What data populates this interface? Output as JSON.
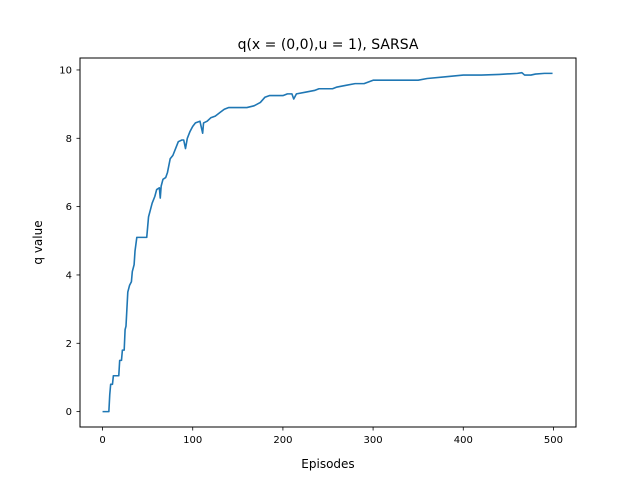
{
  "chart_data": {
    "type": "line",
    "title": "q(x = (0,0),u = 1), SARSA",
    "xlabel": "Episodes",
    "ylabel": "q value",
    "xlim": [
      -25,
      525
    ],
    "ylim": [
      -0.45,
      10.35
    ],
    "x_ticks": [
      0,
      100,
      200,
      300,
      400,
      500
    ],
    "y_ticks": [
      0,
      2,
      4,
      6,
      8,
      10
    ],
    "grid": false,
    "legend": "none",
    "series": [
      {
        "color": "#1f77b4",
        "points": [
          [
            0,
            0
          ],
          [
            7,
            0
          ],
          [
            8,
            0.5
          ],
          [
            9,
            0.8
          ],
          [
            11,
            0.8
          ],
          [
            12,
            1.05
          ],
          [
            18,
            1.05
          ],
          [
            19,
            1.5
          ],
          [
            21,
            1.5
          ],
          [
            22,
            1.8
          ],
          [
            24,
            1.8
          ],
          [
            25,
            2.4
          ],
          [
            26,
            2.5
          ],
          [
            27,
            3.0
          ],
          [
            28,
            3.5
          ],
          [
            30,
            3.7
          ],
          [
            32,
            3.8
          ],
          [
            33,
            4.1
          ],
          [
            35,
            4.3
          ],
          [
            36,
            4.7
          ],
          [
            37,
            4.9
          ],
          [
            38,
            5.1
          ],
          [
            49,
            5.1
          ],
          [
            50,
            5.4
          ],
          [
            51,
            5.7
          ],
          [
            53,
            5.9
          ],
          [
            55,
            6.1
          ],
          [
            58,
            6.3
          ],
          [
            60,
            6.5
          ],
          [
            63,
            6.55
          ],
          [
            64,
            6.25
          ],
          [
            65,
            6.6
          ],
          [
            67,
            6.8
          ],
          [
            70,
            6.85
          ],
          [
            72,
            7.0
          ],
          [
            75,
            7.4
          ],
          [
            78,
            7.5
          ],
          [
            81,
            7.7
          ],
          [
            84,
            7.9
          ],
          [
            88,
            7.95
          ],
          [
            90,
            7.95
          ],
          [
            92,
            7.7
          ],
          [
            94,
            8.0
          ],
          [
            97,
            8.2
          ],
          [
            100,
            8.35
          ],
          [
            103,
            8.45
          ],
          [
            108,
            8.5
          ],
          [
            111,
            8.15
          ],
          [
            112,
            8.45
          ],
          [
            116,
            8.5
          ],
          [
            120,
            8.6
          ],
          [
            125,
            8.65
          ],
          [
            130,
            8.75
          ],
          [
            135,
            8.85
          ],
          [
            140,
            8.9
          ],
          [
            155,
            8.9
          ],
          [
            160,
            8.9
          ],
          [
            168,
            8.95
          ],
          [
            175,
            9.05
          ],
          [
            180,
            9.2
          ],
          [
            185,
            9.25
          ],
          [
            200,
            9.25
          ],
          [
            205,
            9.3
          ],
          [
            210,
            9.3
          ],
          [
            212,
            9.15
          ],
          [
            215,
            9.3
          ],
          [
            225,
            9.35
          ],
          [
            235,
            9.4
          ],
          [
            240,
            9.45
          ],
          [
            245,
            9.45
          ],
          [
            250,
            9.45
          ],
          [
            255,
            9.45
          ],
          [
            260,
            9.5
          ],
          [
            270,
            9.55
          ],
          [
            280,
            9.6
          ],
          [
            290,
            9.6
          ],
          [
            300,
            9.7
          ],
          [
            350,
            9.7
          ],
          [
            360,
            9.75
          ],
          [
            380,
            9.8
          ],
          [
            400,
            9.85
          ],
          [
            410,
            9.85
          ],
          [
            420,
            9.85
          ],
          [
            440,
            9.87
          ],
          [
            460,
            9.9
          ],
          [
            465,
            9.92
          ],
          [
            468,
            9.85
          ],
          [
            475,
            9.85
          ],
          [
            480,
            9.88
          ],
          [
            490,
            9.9
          ],
          [
            499,
            9.9
          ]
        ]
      }
    ]
  }
}
